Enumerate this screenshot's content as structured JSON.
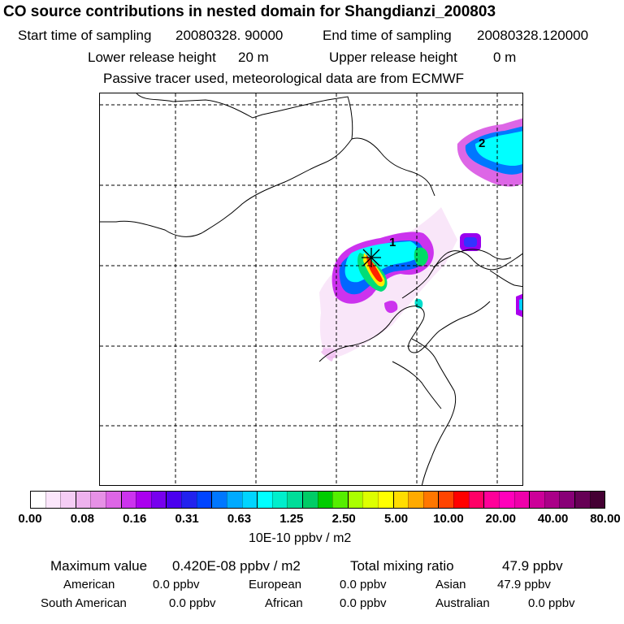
{
  "title": "CO  source contributions in nested domain for Shangdianzi_200803",
  "header": {
    "start_label": "Start time of sampling",
    "start_value": "20080328. 90000",
    "end_label": "End time of sampling",
    "end_value": "20080328.120000",
    "lower_label": "Lower release height",
    "lower_value": "20 m",
    "upper_label": "Upper release height",
    "upper_value": "0 m",
    "note": "Passive tracer used, meteorological data are from ECMWF"
  },
  "map": {
    "marker_labels": [
      "1",
      "2"
    ],
    "receptor_marker": "star-cross-icon"
  },
  "colorbar": {
    "colors": [
      "#ffffff",
      "#fbe6fb",
      "#f5cdf5",
      "#eeb2ee",
      "#e691e6",
      "#dd66e6",
      "#cc33ee",
      "#aa00ee",
      "#7700ee",
      "#4a00ee",
      "#2222ee",
      "#0044ff",
      "#0077ff",
      "#00aaff",
      "#00d4ff",
      "#00ffff",
      "#00eecc",
      "#00dd99",
      "#00cc66",
      "#00cc00",
      "#55ee00",
      "#aaff00",
      "#ddff00",
      "#ffff00",
      "#ffdd00",
      "#ffaa00",
      "#ff7700",
      "#ff4400",
      "#ff0000",
      "#ff0066",
      "#ff0099",
      "#ff00bb",
      "#ee00aa",
      "#cc0099",
      "#aa0088",
      "#880077",
      "#660055",
      "#440033"
    ],
    "tick_labels": [
      "0.00",
      "0.08",
      "0.16",
      "0.31",
      "0.63",
      "1.25",
      "2.50",
      "5.00",
      "10.00",
      "20.00",
      "40.00",
      "80.00"
    ],
    "unit": "10E-10 ppbv / m2"
  },
  "footer": {
    "max_label": "Maximum value",
    "max_value": "0.420E-08 ppbv / m2",
    "total_label": "Total mixing ratio",
    "total_value": "47.9 ppbv",
    "regions": [
      {
        "name": "American",
        "value": "0.0 ppbv"
      },
      {
        "name": "European",
        "value": "0.0 ppbv"
      },
      {
        "name": "Asian",
        "value": "47.9 ppbv"
      },
      {
        "name": "South American",
        "value": "0.0 ppbv"
      },
      {
        "name": "African",
        "value": "0.0 ppbv"
      },
      {
        "name": "Australian",
        "value": "0.0 ppbv"
      }
    ]
  }
}
